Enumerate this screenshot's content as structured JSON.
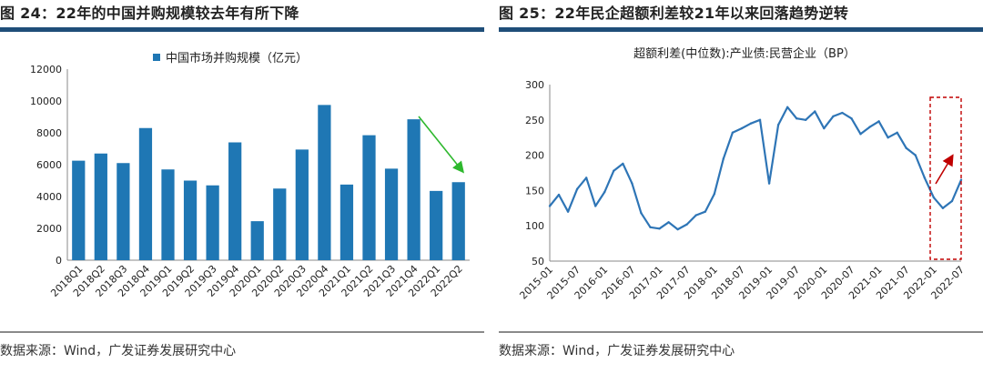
{
  "left": {
    "title": "图 24：22年的中国并购规模较去年有所下降",
    "source": "数据来源：Wind，广发证券发展研究中心",
    "chart_data": {
      "type": "bar",
      "series": [
        {
          "name": "中国市场并购规模（亿元）",
          "values": [
            6250,
            6700,
            6100,
            8300,
            5700,
            5000,
            4700,
            7400,
            2450,
            4500,
            6950,
            9750,
            4750,
            7850,
            5750,
            8850,
            4350,
            4900
          ]
        }
      ],
      "categories": [
        "2018Q1",
        "2018Q2",
        "2018Q3",
        "2018Q4",
        "2019Q1",
        "2019Q2",
        "2019Q3",
        "2019Q4",
        "2020Q1",
        "2020Q2",
        "2020Q3",
        "2020Q4",
        "2021Q1",
        "2021Q2",
        "2021Q3",
        "2021Q4",
        "2022Q1",
        "2022Q2"
      ],
      "ylim": [
        0,
        12000
      ],
      "yticks": [
        "0",
        "2000",
        "4000",
        "6000",
        "8000",
        "10000",
        "12000"
      ],
      "legend": "top-center",
      "annotation": "downward trend arrow (green)",
      "bar_color": "#1f77b4",
      "arrow_color": "#2eb82e"
    }
  },
  "right": {
    "title": "图 25：22年民企超额利差较21年以来回落趋势逆转",
    "source": "数据来源：Wind，广发证券发展研究中心",
    "chart_data": {
      "type": "line",
      "title": "超额利差(中位数):产业债:民营企业（BP）",
      "ylim": [
        50,
        300
      ],
      "yticks": [
        "50",
        "100",
        "150",
        "200",
        "250",
        "300"
      ],
      "categories": [
        "2015-01",
        "2015-07",
        "2016-01",
        "2016-07",
        "2017-01",
        "2017-07",
        "2018-01",
        "2018-07",
        "2019-01",
        "2019-07",
        "2020-01",
        "2020-07",
        "2021-01",
        "2021-07",
        "2022-01",
        "2022-07"
      ],
      "x": [
        0,
        2,
        4,
        6,
        8,
        10,
        12,
        14,
        16,
        18,
        20,
        22,
        24,
        26,
        28,
        30,
        32,
        34,
        36,
        38,
        40,
        42,
        44,
        46,
        48,
        50,
        52,
        54,
        56,
        58,
        60,
        62,
        64,
        66,
        68,
        70,
        72,
        74,
        76,
        78,
        80,
        82,
        84,
        86,
        88,
        90
      ],
      "values": [
        128,
        144,
        120,
        152,
        168,
        128,
        148,
        178,
        188,
        160,
        118,
        98,
        96,
        105,
        95,
        102,
        115,
        120,
        145,
        195,
        232,
        238,
        245,
        250,
        160,
        243,
        268,
        252,
        250,
        262,
        238,
        255,
        260,
        252,
        230,
        240,
        248,
        225,
        232,
        210,
        200,
        168,
        140,
        125,
        135,
        165
      ],
      "line_color": "#2e75b6",
      "annotation": "red dashed box with up arrow at end",
      "highlight_color": "#c00000"
    }
  }
}
